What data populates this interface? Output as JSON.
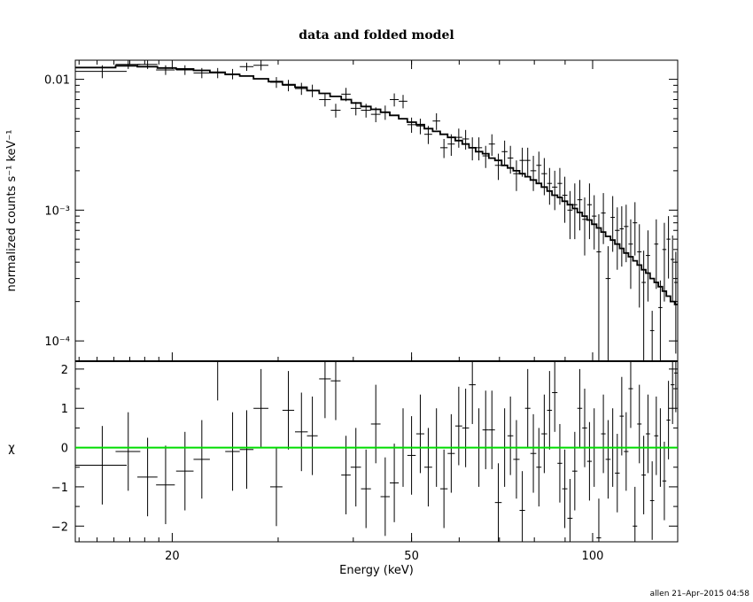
{
  "chart_data": {
    "type": "scatter",
    "title": "data and folded model",
    "xlabel": "Energy (keV)",
    "footer": "allen 21–Apr–2015 04:58",
    "colors": {
      "axes": "#000000",
      "zero_line": "#00dd00"
    },
    "top_panel": {
      "ylabel": "normalized counts s⁻¹ keV⁻¹",
      "yscale": "log",
      "ylim": [
        7e-05,
        0.014
      ],
      "ytick_labels": [
        "0.01",
        "10⁻³",
        "10⁻⁴"
      ],
      "ytick_values": [
        0.01,
        0.001,
        0.0001
      ],
      "data": {
        "x": [
          15.3,
          16.9,
          18.2,
          19.5,
          21.0,
          22.4,
          23.8,
          25.2,
          26.6,
          28.1,
          29.8,
          31.2,
          32.8,
          34.2,
          35.9,
          37.4,
          38.9,
          40.4,
          42.0,
          43.6,
          45.2,
          46.8,
          48.4,
          50.0,
          51.7,
          53.3,
          55.0,
          56.6,
          58.2,
          59.9,
          61.5,
          63.1,
          64.7,
          66.4,
          68.0,
          69.7,
          71.4,
          73.0,
          74.7,
          76.4,
          78.0,
          79.7,
          81.4,
          83.1,
          84.8,
          86.5,
          88.2,
          89.9,
          91.7,
          93.4,
          95.2,
          97.0,
          98.8,
          100.6,
          102.4,
          104.2,
          106.1,
          108.0,
          109.9,
          111.8,
          113.7,
          115.7,
          117.6,
          119.6,
          121.6,
          123.6,
          125.6,
          127.6,
          129.6,
          131.6,
          133.7,
          135.8,
          137.5
        ],
        "xerr": [
          1.5,
          0.8,
          0.7,
          0.7,
          0.7,
          0.7,
          0.7,
          0.7,
          0.7,
          0.8,
          0.7,
          0.7,
          0.8,
          0.7,
          0.8,
          0.7,
          0.7,
          0.8,
          0.8,
          0.8,
          0.8,
          0.8,
          0.8,
          0.8,
          0.8,
          0.8,
          0.8,
          0.8,
          0.8,
          0.8,
          0.8,
          0.8,
          0.8,
          0.8,
          0.8,
          0.9,
          0.8,
          0.8,
          0.9,
          0.8,
          0.8,
          0.9,
          0.8,
          0.9,
          0.8,
          0.9,
          0.8,
          0.9,
          0.9,
          0.9,
          0.9,
          0.9,
          0.9,
          0.9,
          0.9,
          0.9,
          1.0,
          0.9,
          1.0,
          0.9,
          1.0,
          1.0,
          1.0,
          1.0,
          1.0,
          1.0,
          1.0,
          1.0,
          1.0,
          1.0,
          1.0,
          1.0,
          0.9
        ],
        "y": [
          0.0115,
          0.013,
          0.013,
          0.0118,
          0.0118,
          0.0112,
          0.0112,
          0.011,
          0.0125,
          0.0128,
          0.0095,
          0.009,
          0.0085,
          0.0082,
          0.007,
          0.0058,
          0.0077,
          0.006,
          0.0058,
          0.0054,
          0.0056,
          0.007,
          0.0068,
          0.0045,
          0.0044,
          0.0038,
          0.0048,
          0.003,
          0.0032,
          0.0036,
          0.0035,
          0.003,
          0.003,
          0.0026,
          0.0032,
          0.0022,
          0.0028,
          0.0025,
          0.0019,
          0.0024,
          0.0024,
          0.002,
          0.0022,
          0.0019,
          0.0016,
          0.0015,
          0.0016,
          0.0013,
          0.001,
          0.0011,
          0.0012,
          0.00085,
          0.0011,
          0.0009,
          0.00048,
          0.00095,
          0.0003,
          0.00088,
          0.0007,
          0.00072,
          0.00075,
          0.00055,
          0.0008,
          0.00048,
          0.00028,
          0.00045,
          0.00012,
          0.00055,
          0.00018,
          0.0005,
          0.0006,
          0.00042,
          0.00028
        ],
        "yerr_low": [
          0.0013,
          0.001,
          0.001,
          0.001,
          0.001,
          0.001,
          0.001,
          0.001,
          0.0009,
          0.0011,
          0.0009,
          0.0009,
          0.0009,
          0.0009,
          0.0008,
          0.0007,
          0.0009,
          0.0007,
          0.0007,
          0.0007,
          0.0007,
          0.0008,
          0.0008,
          0.0006,
          0.0006,
          0.0006,
          0.0007,
          0.0005,
          0.0006,
          0.0006,
          0.0006,
          0.0006,
          0.0006,
          0.0005,
          0.0006,
          0.0005,
          0.0006,
          0.0006,
          0.0005,
          0.0006,
          0.0006,
          0.0006,
          0.0006,
          0.0006,
          0.0005,
          0.0005,
          0.0005,
          0.0005,
          0.0004,
          0.0005,
          0.0005,
          0.0004,
          0.0005,
          0.0004,
          0.00045,
          0.0004,
          0.00023,
          0.0004,
          0.00035,
          0.00035,
          0.00035,
          0.0003,
          0.00035,
          0.0003,
          0.00021,
          0.00025,
          5e-05,
          0.0003,
          0.00011,
          0.0003,
          0.0003,
          0.00022,
          0.0002
        ],
        "yerr_high": [
          0.0013,
          0.001,
          0.001,
          0.001,
          0.001,
          0.001,
          0.001,
          0.001,
          0.0009,
          0.0011,
          0.0009,
          0.0009,
          0.0009,
          0.0009,
          0.0008,
          0.0007,
          0.0009,
          0.0007,
          0.0007,
          0.0007,
          0.0007,
          0.0008,
          0.0008,
          0.0006,
          0.0006,
          0.0006,
          0.0007,
          0.0005,
          0.0006,
          0.0006,
          0.0006,
          0.0006,
          0.0006,
          0.0005,
          0.0006,
          0.0005,
          0.0006,
          0.0006,
          0.0005,
          0.0006,
          0.0006,
          0.0006,
          0.0006,
          0.0006,
          0.0005,
          0.0005,
          0.0005,
          0.0005,
          0.0004,
          0.0005,
          0.0005,
          0.0004,
          0.0005,
          0.0004,
          0.00045,
          0.0004,
          0.00023,
          0.0004,
          0.00035,
          0.00035,
          0.00035,
          0.0003,
          0.00035,
          0.0003,
          0.00021,
          0.00025,
          5e-05,
          0.0003,
          0.00011,
          0.0003,
          0.0003,
          0.00022,
          0.0002
        ]
      },
      "model": {
        "x": [
          13.8,
          16.1,
          17.5,
          18.9,
          20.3,
          21.7,
          23.1,
          24.5,
          25.9,
          27.3,
          28.9,
          30.5,
          32.0,
          33.5,
          35.1,
          36.6,
          38.2,
          39.7,
          41.2,
          42.8,
          44.4,
          46.0,
          47.6,
          49.2,
          50.9,
          52.5,
          54.2,
          55.8,
          57.4,
          59.1,
          60.7,
          62.3,
          63.9,
          65.6,
          67.2,
          68.8,
          70.6,
          72.2,
          73.8,
          75.6,
          77.2,
          78.8,
          80.6,
          82.2,
          84.0,
          85.6,
          87.4,
          89.0,
          90.8,
          92.6,
          94.3,
          96.1,
          97.9,
          99.7,
          101.5,
          103.3,
          105.1,
          107.1,
          108.9,
          110.9,
          112.7,
          114.7,
          116.7,
          118.6,
          120.6,
          122.6,
          124.6,
          126.6,
          128.6,
          130.6,
          132.6,
          134.7,
          136.9,
          138.4
        ],
        "y": [
          0.0123,
          0.0127,
          0.0125,
          0.0122,
          0.012,
          0.0117,
          0.0113,
          0.0109,
          0.0106,
          0.0101,
          0.0096,
          0.0091,
          0.0087,
          0.0082,
          0.0078,
          0.0074,
          0.007,
          0.0066,
          0.0062,
          0.0059,
          0.0056,
          0.0053,
          0.005,
          0.0047,
          0.0045,
          0.0042,
          0.004,
          0.0038,
          0.0036,
          0.0034,
          0.0032,
          0.003,
          0.0028,
          0.0027,
          0.0025,
          0.0024,
          0.0022,
          0.0021,
          0.002,
          0.0019,
          0.0018,
          0.0017,
          0.0016,
          0.0015,
          0.0014,
          0.0013,
          0.00125,
          0.00117,
          0.0011,
          0.00103,
          0.00096,
          0.0009,
          0.00084,
          0.00078,
          0.00073,
          0.00068,
          0.00063,
          0.00059,
          0.00055,
          0.00051,
          0.00047,
          0.00044,
          0.00041,
          0.00038,
          0.00035,
          0.00033,
          0.0003,
          0.00028,
          0.00026,
          0.00024,
          0.00022,
          0.0002,
          0.00019,
          0.00018
        ]
      }
    },
    "bottom_panel": {
      "ylabel": "χ",
      "ylim": [
        -2.4,
        2.2
      ],
      "ytick_values": [
        2,
        1,
        0,
        -1,
        -2
      ],
      "ytick_labels": [
        "2",
        "1",
        "0",
        "−1",
        "−2"
      ],
      "zero_line": 0,
      "data": {
        "chi": [
          -0.45,
          -0.1,
          -0.75,
          -0.95,
          -0.6,
          -0.3,
          2.2,
          -0.1,
          -0.05,
          1.0,
          -1.0,
          0.95,
          0.4,
          0.3,
          1.75,
          1.7,
          -0.7,
          -0.5,
          -1.05,
          0.6,
          -1.25,
          -0.9,
          0.0,
          -0.2,
          0.35,
          -0.5,
          0.0,
          -1.05,
          -0.15,
          0.55,
          0.5,
          1.6,
          0.0,
          0.45,
          0.45,
          -1.4,
          0.0,
          0.3,
          -0.3,
          -1.6,
          1.0,
          -0.15,
          -0.5,
          0.35,
          0.95,
          1.4,
          -0.4,
          -1.05,
          -1.8,
          -0.6,
          1.0,
          0.5,
          -0.35,
          0.0,
          -2.3,
          0.35,
          -0.3,
          0.0,
          -0.65,
          0.8,
          -0.1,
          1.5,
          -2.0,
          0.6,
          -0.7,
          0.35,
          -1.35,
          0.3,
          0.0,
          -0.85,
          0.7,
          1.6,
          1.9
        ],
        "err": [
          1.0,
          1.0,
          1.0,
          1.0,
          1.0,
          1.0,
          1.0,
          1.0,
          1.0,
          1.0,
          1.0,
          1.0,
          1.0,
          1.0,
          1.0,
          1.0,
          1.0,
          1.0,
          1.0,
          1.0,
          1.0,
          1.0,
          1.0,
          1.0,
          1.0,
          1.0,
          1.0,
          1.0,
          1.0,
          1.0,
          1.0,
          1.0,
          1.0,
          1.0,
          1.0,
          1.0,
          1.0,
          1.0,
          1.0,
          1.0,
          1.0,
          1.0,
          1.0,
          1.0,
          1.0,
          1.0,
          1.0,
          1.0,
          1.0,
          1.0,
          1.0,
          1.0,
          1.0,
          1.0,
          1.0,
          1.0,
          1.0,
          1.0,
          1.0,
          1.0,
          1.0,
          1.0,
          1.0,
          1.0,
          1.0,
          1.0,
          1.0,
          1.0,
          1.0,
          1.0,
          1.0,
          1.0,
          1.0
        ]
      }
    },
    "xaxis": {
      "scale": "log",
      "xlim": [
        13.8,
        138.5
      ],
      "tick_values": [
        20,
        50,
        100
      ],
      "tick_labels": [
        "20",
        "50",
        "100"
      ]
    }
  }
}
